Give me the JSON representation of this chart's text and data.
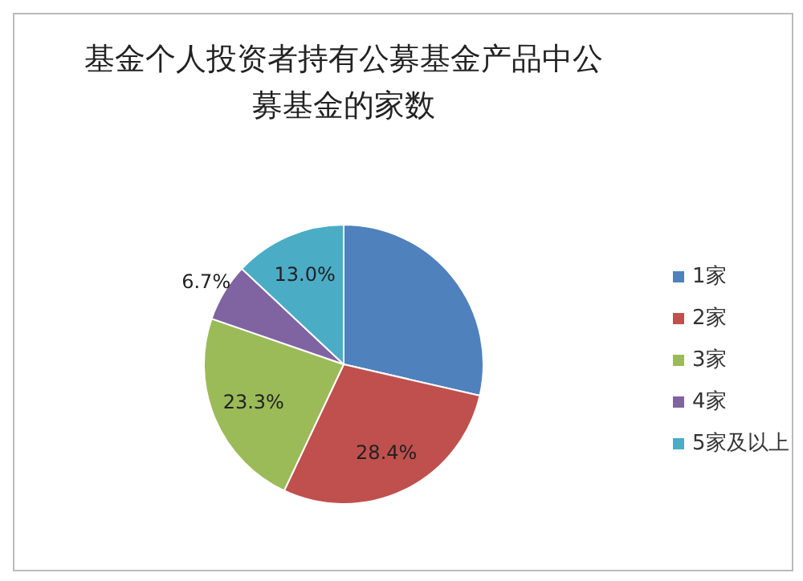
{
  "chart_data": {
    "type": "pie",
    "title": "基金个人投资者持有公募基金产品中公募基金的家数",
    "categories": [
      "1家",
      "2家",
      "3家",
      "4家",
      "5家及以上"
    ],
    "values": [
      28.6,
      28.4,
      23.3,
      6.7,
      13.0
    ],
    "colors": [
      "#4f81bd",
      "#c0504d",
      "#9bbb59",
      "#8064a2",
      "#4bacc6"
    ],
    "value_labels": [
      null,
      "28.4%",
      "23.3%",
      "6.7%",
      "13.0%"
    ],
    "legend": "right"
  }
}
